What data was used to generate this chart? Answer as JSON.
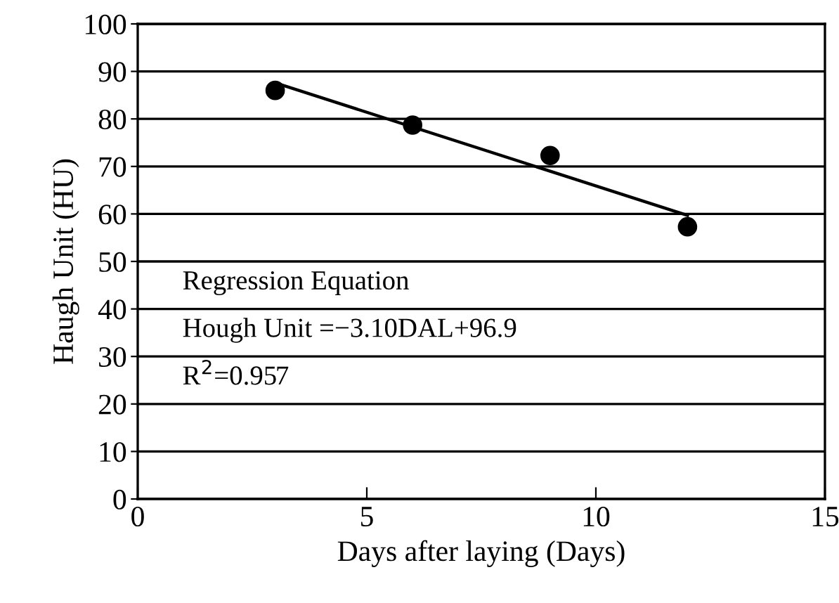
{
  "chart_data": {
    "type": "scatter",
    "xlabel": "Days after laying (Days)",
    "ylabel": "Haugh Unit (HU)",
    "xlim": [
      0,
      15
    ],
    "xticks": [
      0,
      5,
      10,
      15
    ],
    "ylim": [
      0,
      100
    ],
    "yticks": [
      0,
      10,
      20,
      30,
      40,
      50,
      60,
      70,
      80,
      90,
      100
    ],
    "grid": "y",
    "marker": "circle",
    "series": [
      {
        "color": "#000000",
        "x": [
          3,
          6,
          9,
          12
        ],
        "values": [
          86,
          78.7,
          72.3,
          57.3
        ]
      },
      {
        "type": "line",
        "color": "#000000",
        "x": [
          3,
          12
        ],
        "values": [
          87.6,
          59.7
        ],
        "line_style": "solid",
        "marker": "none"
      }
    ],
    "annotations": [
      "Regression Equation",
      "Hough Unit =−3.10DAL+96.9",
      "R$^{2}$=0.957"
    ]
  }
}
